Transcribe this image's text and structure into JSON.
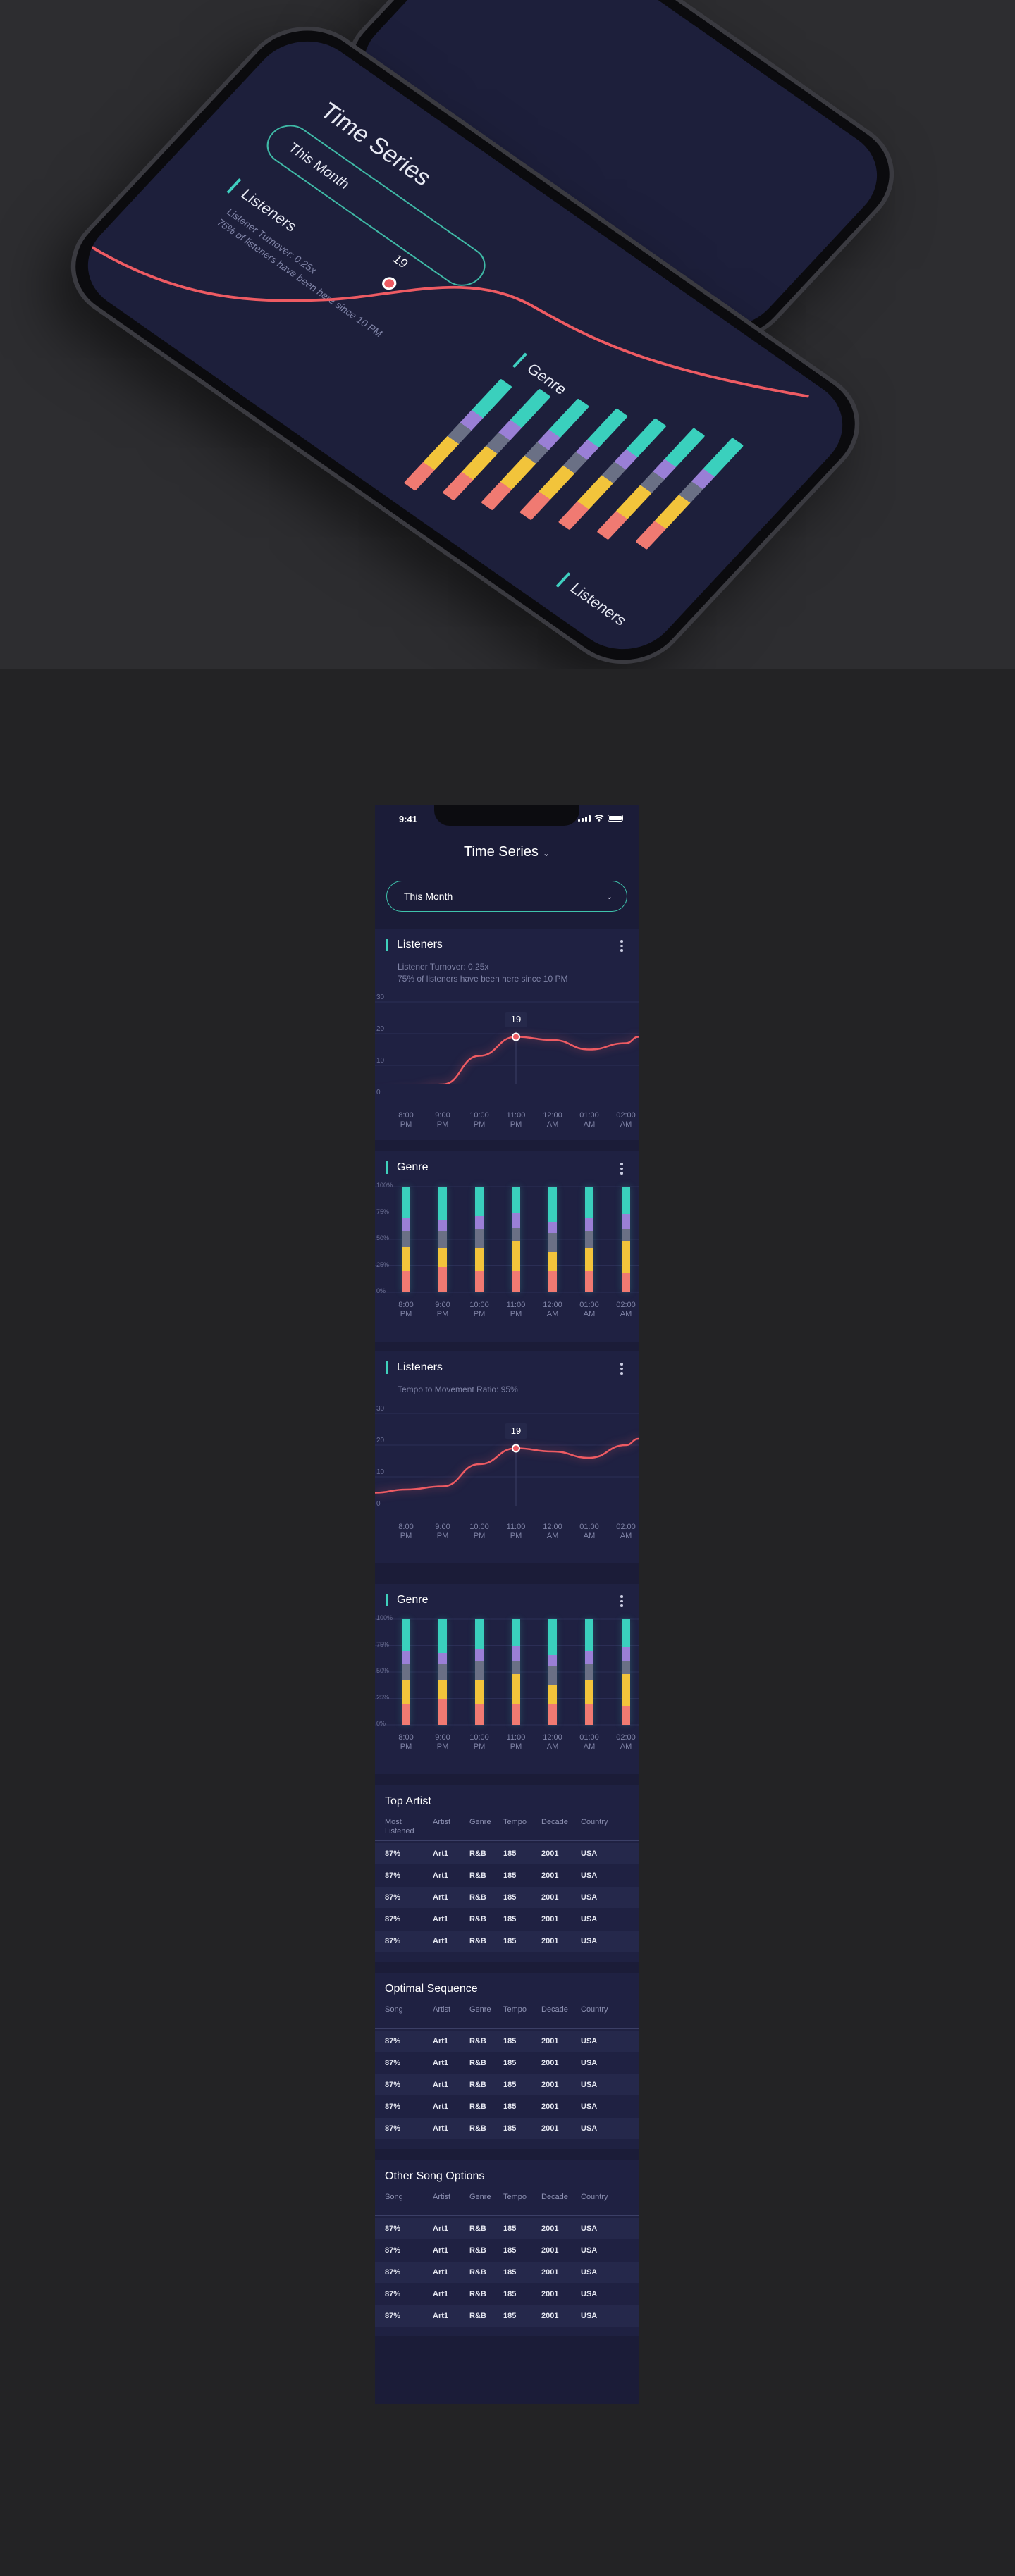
{
  "mockup": {
    "title": "Time Series",
    "period": "This Month",
    "card1_title": "Listeners",
    "card1_sub_line1": "Listener Turnover: 0.25x",
    "card1_sub_line2": "75% of listeners have been here since 10 PM",
    "point_label": "19",
    "card2_title": "Genre",
    "card3_title": "Listeners"
  },
  "status": {
    "time": "9:41"
  },
  "header": {
    "title": "Time Series",
    "chevron": "⌄"
  },
  "period_select": {
    "value": "This Month",
    "chevron": "⌄"
  },
  "icons": {
    "more": "more-icon",
    "chevron": "chevron-down-icon"
  },
  "colors": {
    "background": "#1b1c38",
    "card": "#1f2142",
    "accent": "#3fd0bc",
    "line": "#ee5b63",
    "genre_teal": "#3ad0bd",
    "genre_purple": "#9a7fd6",
    "genre_gray": "#6a7085",
    "genre_yellow": "#f2c43b",
    "genre_red": "#f07a72"
  },
  "cards": {
    "listeners1": {
      "title": "Listeners",
      "sub1": "Listener Turnover: 0.25x",
      "sub2": "75% of listeners have been here since 10 PM",
      "tooltip": "19"
    },
    "genre1": {
      "title": "Genre"
    },
    "listeners2": {
      "title": "Listeners",
      "sub1": "Tempo to Movement Ratio: 95%",
      "tooltip": "19"
    },
    "genre2": {
      "title": "Genre"
    }
  },
  "chart_data": [
    {
      "type": "line",
      "title": "Listeners",
      "x": [
        "8:00 PM",
        "9:00 PM",
        "10:00 PM",
        "11:00 PM",
        "12:00 AM",
        "01:00 AM",
        "02:00 AM"
      ],
      "series": [
        {
          "values": [
            2,
            4,
            13,
            19,
            18,
            15,
            17
          ]
        }
      ],
      "highlight": {
        "x": "11:00 PM",
        "value": 19
      },
      "yticks": [
        "30",
        "20",
        "10",
        "0"
      ],
      "ylim": [
        0,
        30
      ],
      "grid": true
    },
    {
      "type": "bar",
      "title": "Genre",
      "categories": [
        "8:00 PM",
        "9:00 PM",
        "10:00 PM",
        "11:00 PM",
        "12:00 AM",
        "01:00 AM",
        "02:00 AM"
      ],
      "yticks": [
        "100%",
        "75%",
        "50%",
        "25%",
        "0%"
      ],
      "stacked": true,
      "series": [
        {
          "color": "#3ad0bd",
          "values": [
            30,
            32,
            28,
            25,
            34,
            30,
            26
          ]
        },
        {
          "color": "#9a7fd6",
          "values": [
            12,
            10,
            12,
            14,
            10,
            12,
            14
          ]
        },
        {
          "color": "#6a7085",
          "values": [
            15,
            16,
            18,
            13,
            18,
            16,
            12
          ]
        },
        {
          "color": "#f2c43b",
          "values": [
            23,
            18,
            22,
            28,
            18,
            22,
            30
          ]
        },
        {
          "color": "#f07a72",
          "values": [
            20,
            24,
            20,
            20,
            20,
            20,
            18
          ]
        }
      ]
    },
    {
      "type": "line",
      "title": "Listeners",
      "x": [
        "8:00 PM",
        "9:00 PM",
        "10:00 PM",
        "11:00 PM",
        "12:00 AM",
        "01:00 AM",
        "02:00 AM"
      ],
      "series": [
        {
          "values": [
            6,
            7,
            14,
            19,
            18,
            16,
            20
          ]
        }
      ],
      "highlight": {
        "x": "11:00 PM",
        "value": 19
      },
      "yticks": [
        "30",
        "20",
        "10",
        "0"
      ],
      "ylim": [
        0,
        30
      ],
      "grid": true
    },
    {
      "type": "bar",
      "title": "Genre",
      "categories": [
        "8:00 PM",
        "9:00 PM",
        "10:00 PM",
        "11:00 PM",
        "12:00 AM",
        "01:00 AM",
        "02:00 AM"
      ],
      "yticks": [
        "100%",
        "75%",
        "50%",
        "25%",
        "0%"
      ],
      "stacked": true,
      "series": [
        {
          "color": "#3ad0bd",
          "values": [
            30,
            32,
            28,
            25,
            34,
            30,
            26
          ]
        },
        {
          "color": "#9a7fd6",
          "values": [
            12,
            10,
            12,
            14,
            10,
            12,
            14
          ]
        },
        {
          "color": "#6a7085",
          "values": [
            15,
            16,
            18,
            13,
            18,
            16,
            12
          ]
        },
        {
          "color": "#f2c43b",
          "values": [
            23,
            18,
            22,
            28,
            18,
            22,
            30
          ]
        },
        {
          "color": "#f07a72",
          "values": [
            20,
            24,
            20,
            20,
            20,
            20,
            18
          ]
        }
      ]
    }
  ],
  "tables": [
    {
      "title": "Top Artist",
      "columns": [
        "Most Listened",
        "Artist",
        "Genre",
        "Tempo",
        "Decade",
        "Country"
      ],
      "rows": [
        [
          "87%",
          "Art1",
          "R&B",
          "185",
          "2001",
          "USA"
        ],
        [
          "87%",
          "Art1",
          "R&B",
          "185",
          "2001",
          "USA"
        ],
        [
          "87%",
          "Art1",
          "R&B",
          "185",
          "2001",
          "USA"
        ],
        [
          "87%",
          "Art1",
          "R&B",
          "185",
          "2001",
          "USA"
        ],
        [
          "87%",
          "Art1",
          "R&B",
          "185",
          "2001",
          "USA"
        ]
      ]
    },
    {
      "title": "Optimal Sequence",
      "columns": [
        "Song",
        "Artist",
        "Genre",
        "Tempo",
        "Decade",
        "Country"
      ],
      "rows": [
        [
          "87%",
          "Art1",
          "R&B",
          "185",
          "2001",
          "USA"
        ],
        [
          "87%",
          "Art1",
          "R&B",
          "185",
          "2001",
          "USA"
        ],
        [
          "87%",
          "Art1",
          "R&B",
          "185",
          "2001",
          "USA"
        ],
        [
          "87%",
          "Art1",
          "R&B",
          "185",
          "2001",
          "USA"
        ],
        [
          "87%",
          "Art1",
          "R&B",
          "185",
          "2001",
          "USA"
        ]
      ]
    },
    {
      "title": "Other Song Options",
      "columns": [
        "Song",
        "Artist",
        "Genre",
        "Tempo",
        "Decade",
        "Country"
      ],
      "rows": [
        [
          "87%",
          "Art1",
          "R&B",
          "185",
          "2001",
          "USA"
        ],
        [
          "87%",
          "Art1",
          "R&B",
          "185",
          "2001",
          "USA"
        ],
        [
          "87%",
          "Art1",
          "R&B",
          "185",
          "2001",
          "USA"
        ],
        [
          "87%",
          "Art1",
          "R&B",
          "185",
          "2001",
          "USA"
        ],
        [
          "87%",
          "Art1",
          "R&B",
          "185",
          "2001",
          "USA"
        ]
      ]
    }
  ]
}
